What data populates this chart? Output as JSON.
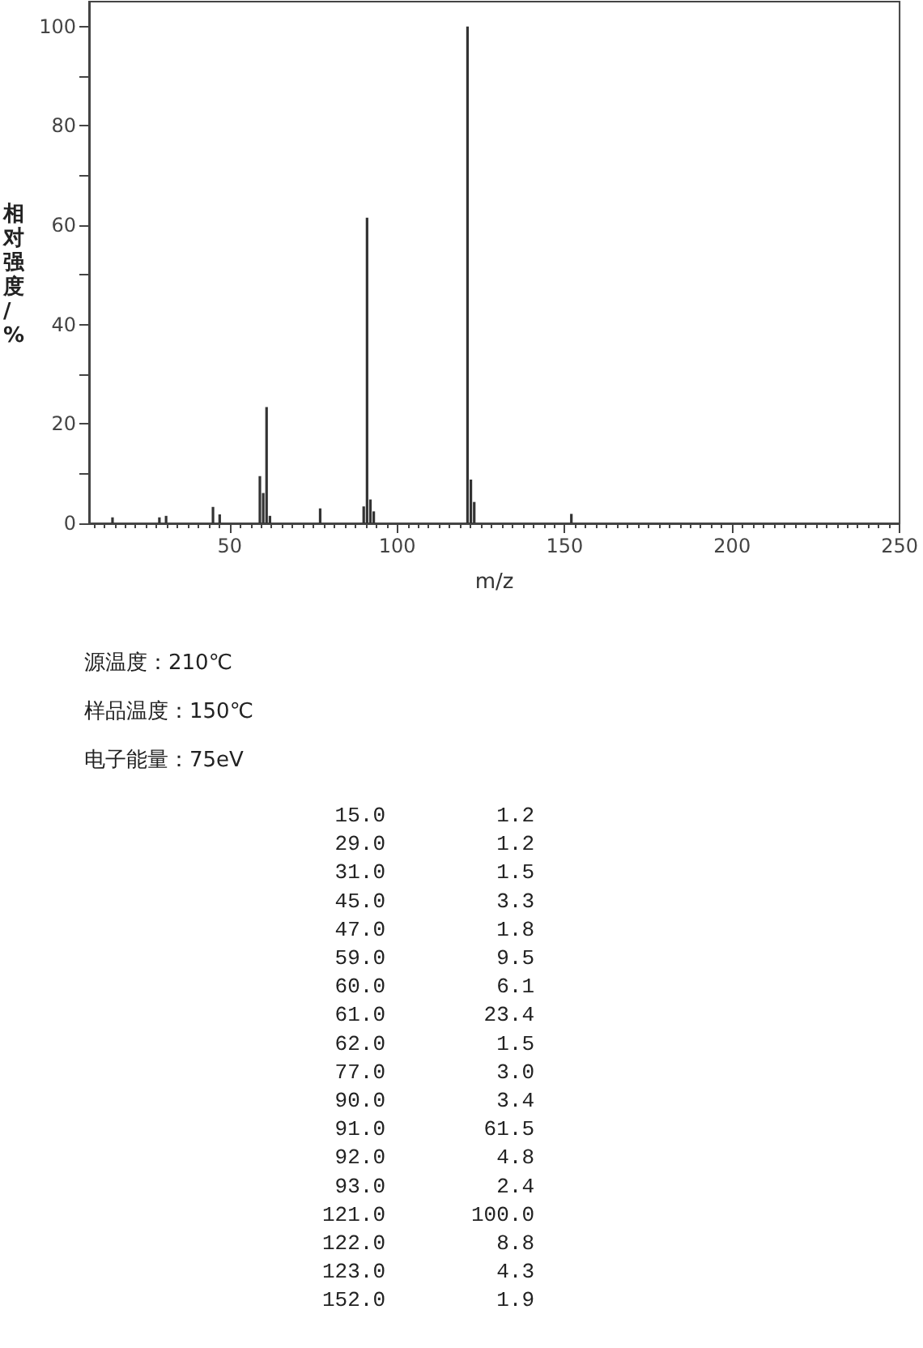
{
  "chart_data": {
    "type": "bar",
    "xlabel": "m/z",
    "ylabel": "相对强度/%",
    "x": [
      15,
      29,
      31,
      45,
      47,
      59,
      60,
      61,
      62,
      77,
      90,
      91,
      92,
      93,
      121,
      122,
      123,
      152
    ],
    "values": [
      1.2,
      1.2,
      1.5,
      3.3,
      1.8,
      9.5,
      6.1,
      23.4,
      1.5,
      3.0,
      3.4,
      61.5,
      4.8,
      2.4,
      100.0,
      8.8,
      4.3,
      1.9
    ],
    "color": "#333333",
    "xlim": [
      8,
      250
    ],
    "xticks": [
      50,
      100,
      150,
      200,
      250
    ],
    "ylim": [
      0,
      105
    ],
    "yticks": [
      0,
      {
        "value": 10,
        "label": null
      },
      20,
      {
        "value": 30,
        "label": null
      },
      40,
      {
        "value": 50,
        "label": null
      },
      60,
      {
        "value": 70,
        "label": null
      },
      80,
      {
        "value": 90,
        "label": null
      },
      100
    ],
    "grid": false,
    "annotations": [
      "源温度：210℃",
      "样品温度：150℃",
      "电子能量：75eV",
      "15.0",
      "1.2",
      "29.0",
      "1.2",
      "31.0",
      "1.5",
      "45.0",
      "3.3",
      "47.0",
      "1.8",
      "59.0",
      "9.5",
      "60.0",
      "6.1",
      "61.0",
      "23.4",
      "62.0",
      "1.5",
      "77.0",
      "3.0",
      "90.0",
      "3.4",
      "91.0",
      "61.5",
      "92.0",
      "4.8",
      "93.0",
      "2.4",
      "121.0",
      "100.0",
      "122.0",
      "8.8",
      "123.0",
      "4.3",
      "152.0",
      "1.9"
    ]
  }
}
